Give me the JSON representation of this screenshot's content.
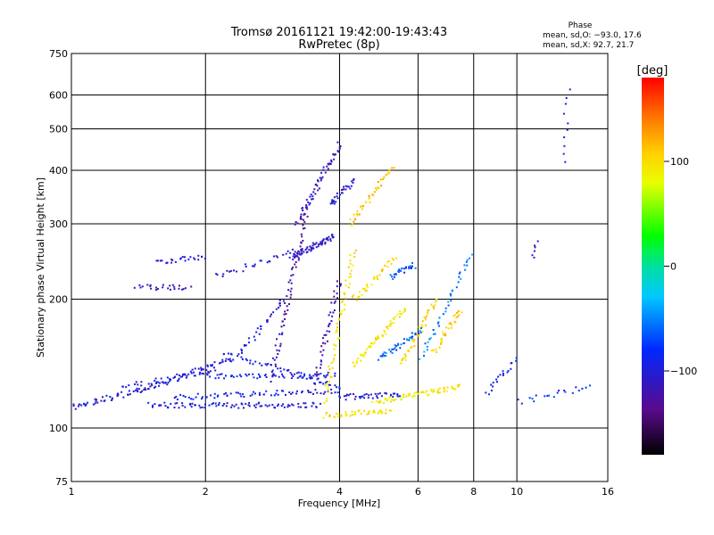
{
  "chart_data": {
    "type": "scatter",
    "title": "Tromsø 20161121 19:42:00-19:43:43",
    "subtitle": "RwPretec (8p)",
    "xlabel": "Frequency [MHz]",
    "ylabel": "Stationary phase Virtual Height [km]",
    "x_scale": "log",
    "y_scale": "log",
    "xlim": [
      1,
      16
    ],
    "ylim": [
      75,
      750
    ],
    "x_ticks": [
      "1",
      "2",
      "4",
      "6",
      "8",
      "10",
      "16"
    ],
    "x_tick_values": [
      1,
      2,
      4,
      6,
      8,
      10,
      16
    ],
    "y_ticks": [
      "75",
      "100",
      "200",
      "300",
      "400",
      "500",
      "600",
      "750"
    ],
    "y_tick_values": [
      75,
      100,
      200,
      300,
      400,
      500,
      600,
      750
    ],
    "grid": true,
    "phase_stats": {
      "heading": "Phase",
      "line1": "mean, sd,O: −93.0, 17.6",
      "line2": "mean, sd,X:  92.7, 21.7"
    },
    "colorbar": {
      "label": "[deg]",
      "range": [
        -180,
        180
      ],
      "ticks": [
        "100",
        "0",
        "−100"
      ],
      "tick_values": [
        100,
        0,
        -100
      ]
    },
    "traces": [
      {
        "x": [
          1.0,
          1.45
        ],
        "y": [
          112,
          123
        ],
        "phase": -100,
        "n": 45
      },
      {
        "x": [
          1.45,
          2.3
        ],
        "y": [
          123,
          145
        ],
        "phase": -100,
        "n": 60
      },
      {
        "x": [
          1.3,
          2.1
        ],
        "y": [
          125,
          135
        ],
        "phase": -95,
        "n": 35
      },
      {
        "x": [
          1.5,
          3.6
        ],
        "y": [
          113,
          113
        ],
        "phase": -100,
        "n": 90
      },
      {
        "x": [
          1.7,
          4.0
        ],
        "y": [
          118,
          122
        ],
        "phase": -95,
        "n": 70
      },
      {
        "x": [
          2.0,
          3.9
        ],
        "y": [
          132,
          133
        ],
        "phase": -90,
        "n": 60
      },
      {
        "x": [
          2.2,
          4.0
        ],
        "y": [
          150,
          125
        ],
        "phase": -95,
        "n": 50
      },
      {
        "x": [
          1.55,
          2.0
        ],
        "y": [
          245,
          250
        ],
        "phase": -100,
        "n": 25
      },
      {
        "x": [
          1.4,
          1.85
        ],
        "y": [
          213,
          213
        ],
        "phase": -110,
        "n": 25
      },
      {
        "x": [
          2.1,
          3.8
        ],
        "y": [
          225,
          275
        ],
        "phase": -105,
        "n": 40
      },
      {
        "x": [
          3.1,
          3.9
        ],
        "y": [
          250,
          280
        ],
        "phase": -110,
        "n": 55
      },
      {
        "x": [
          3.2,
          4.0
        ],
        "y": [
          300,
          460
        ],
        "phase": -110,
        "n": 60
      },
      {
        "x": [
          3.8,
          4.3
        ],
        "y": [
          330,
          380
        ],
        "phase": -105,
        "n": 30
      },
      {
        "x": [
          2.8,
          3.4
        ],
        "y": [
          130,
          330
        ],
        "phase": -120,
        "n": 70
      },
      {
        "x": [
          3.5,
          4.0
        ],
        "y": [
          125,
          220
        ],
        "phase": -120,
        "n": 45
      },
      {
        "x": [
          2.4,
          3.0
        ],
        "y": [
          150,
          200
        ],
        "phase": -100,
        "n": 30
      },
      {
        "x": [
          3.7,
          4.3
        ],
        "y": [
          115,
          260
        ],
        "phase": 95,
        "n": 60
      },
      {
        "x": [
          3.7,
          5.2
        ],
        "y": [
          107,
          110
        ],
        "phase": 100,
        "n": 45
      },
      {
        "x": [
          4.2,
          5.3
        ],
        "y": [
          300,
          410
        ],
        "phase": 110,
        "n": 45
      },
      {
        "x": [
          4.3,
          5.3
        ],
        "y": [
          200,
          250
        ],
        "phase": 100,
        "n": 35
      },
      {
        "x": [
          4.3,
          5.6
        ],
        "y": [
          140,
          190
        ],
        "phase": 95,
        "n": 55
      },
      {
        "x": [
          4.8,
          7.5
        ],
        "y": [
          115,
          125
        ],
        "phase": 90,
        "n": 70
      },
      {
        "x": [
          5.5,
          6.6
        ],
        "y": [
          140,
          200
        ],
        "phase": 100,
        "n": 45
      },
      {
        "x": [
          6.5,
          7.5
        ],
        "y": [
          150,
          190
        ],
        "phase": 105,
        "n": 35
      },
      {
        "x": [
          4.0,
          5.5
        ],
        "y": [
          118,
          120
        ],
        "phase": -100,
        "n": 40
      },
      {
        "x": [
          4.9,
          6.1
        ],
        "y": [
          145,
          170
        ],
        "phase": -60,
        "n": 40
      },
      {
        "x": [
          5.2,
          5.9
        ],
        "y": [
          225,
          240
        ],
        "phase": -70,
        "n": 25
      },
      {
        "x": [
          6.1,
          7.9
        ],
        "y": [
          145,
          255
        ],
        "phase": -50,
        "n": 40
      },
      {
        "x": [
          8.6,
          9.9
        ],
        "y": [
          120,
          145
        ],
        "phase": -90,
        "n": 20
      },
      {
        "x": [
          10.2,
          14.5
        ],
        "y": [
          115,
          125
        ],
        "phase": -80,
        "n": 20
      },
      {
        "x": [
          12.8,
          13.0
        ],
        "y": [
          420,
          620
        ],
        "phase": -100,
        "n": 10
      },
      {
        "x": [
          10.8,
          11.1
        ],
        "y": [
          250,
          270
        ],
        "phase": -100,
        "n": 6
      }
    ]
  }
}
